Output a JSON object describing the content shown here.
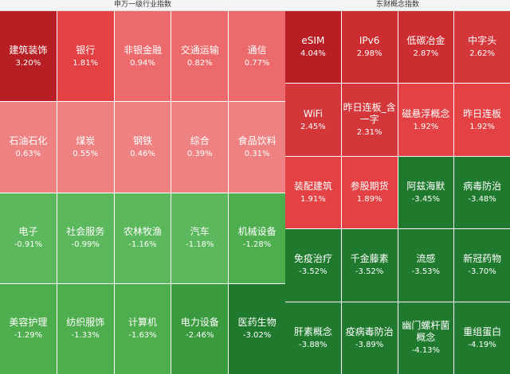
{
  "left_panel": {
    "title": "申万一级行业指数",
    "tiles": [
      {
        "name": "建筑装饰",
        "value": "3.20%",
        "color": "#b71f24"
      },
      {
        "name": "银行",
        "value": "1.81%",
        "color": "#e34143"
      },
      {
        "name": "非银金融",
        "value": "0.94%",
        "color": "#ec6a6b"
      },
      {
        "name": "交通运输",
        "value": "0.82%",
        "color": "#ec6a6b"
      },
      {
        "name": "通信",
        "value": "0.77%",
        "color": "#ec6a6b"
      },
      {
        "name": "石油石化",
        "value": "0.63%",
        "color": "#ee8182"
      },
      {
        "name": "煤炭",
        "value": "0.55%",
        "color": "#ee8182"
      },
      {
        "name": "钢铁",
        "value": "0.46%",
        "color": "#ee8182"
      },
      {
        "name": "综合",
        "value": "0.39%",
        "color": "#ee8182"
      },
      {
        "name": "食品饮料",
        "value": "0.31%",
        "color": "#ee8182"
      },
      {
        "name": "电子",
        "value": "-0.91%",
        "color": "#5cb85c"
      },
      {
        "name": "社会服务",
        "value": "-0.99%",
        "color": "#5cb85c"
      },
      {
        "name": "农林牧渔",
        "value": "-1.16%",
        "color": "#5cb85c"
      },
      {
        "name": "汽车",
        "value": "-1.18%",
        "color": "#5cb85c"
      },
      {
        "name": "机械设备",
        "value": "-1.28%",
        "color": "#4eae4e"
      },
      {
        "name": "美容护理",
        "value": "-1.29%",
        "color": "#4eae4e"
      },
      {
        "name": "纺织服饰",
        "value": "-1.33%",
        "color": "#4eae4e"
      },
      {
        "name": "计算机",
        "value": "-1.63%",
        "color": "#4eae4e"
      },
      {
        "name": "电力设备",
        "value": "-2.46%",
        "color": "#3a9a3e"
      },
      {
        "name": "医药生物",
        "value": "-3.02%",
        "color": "#1f7a2e"
      }
    ]
  },
  "right_panel": {
    "title": "东财概念指数",
    "tiles": [
      {
        "name": "eSIM",
        "value": "4.04%",
        "color": "#b71f24"
      },
      {
        "name": "IPv6",
        "value": "2.98%",
        "color": "#cc2d30"
      },
      {
        "name": "低碳冶金",
        "value": "2.87%",
        "color": "#cc2d30"
      },
      {
        "name": "中字头",
        "value": "2.62%",
        "color": "#d4373a"
      },
      {
        "name": "WiFi",
        "value": "2.45%",
        "color": "#d4373a"
      },
      {
        "name": "昨日连板_含一字",
        "value": "2.31%",
        "color": "#d4373a"
      },
      {
        "name": "磁悬浮概念",
        "value": "1.92%",
        "color": "#e34143"
      },
      {
        "name": "昨日连板",
        "value": "1.92%",
        "color": "#e34143"
      },
      {
        "name": "装配建筑",
        "value": "1.91%",
        "color": "#e34143"
      },
      {
        "name": "参股期货",
        "value": "1.89%",
        "color": "#e34143"
      },
      {
        "name": "阿兹海默",
        "value": "-3.45%",
        "color": "#1f7a2e"
      },
      {
        "name": "病毒防治",
        "value": "-3.48%",
        "color": "#1f7a2e"
      },
      {
        "name": "免疫治疗",
        "value": "-3.52%",
        "color": "#1f7a2e"
      },
      {
        "name": "千金藤素",
        "value": "-3.52%",
        "color": "#1f7a2e"
      },
      {
        "name": "流感",
        "value": "-3.53%",
        "color": "#1f7a2e"
      },
      {
        "name": "新冠药物",
        "value": "-3.70%",
        "color": "#1f7a2e"
      },
      {
        "name": "肝素概念",
        "value": "-3.88%",
        "color": "#1f7a2e"
      },
      {
        "name": "疫病毒防治",
        "value": "-3.89%",
        "color": "#1f7a2e"
      },
      {
        "name": "幽门螺杆菌概念",
        "value": "-4.13%",
        "color": "#1f7a2e"
      },
      {
        "name": "重组蛋白",
        "value": "-4.19%",
        "color": "#1f7a2e"
      }
    ]
  }
}
